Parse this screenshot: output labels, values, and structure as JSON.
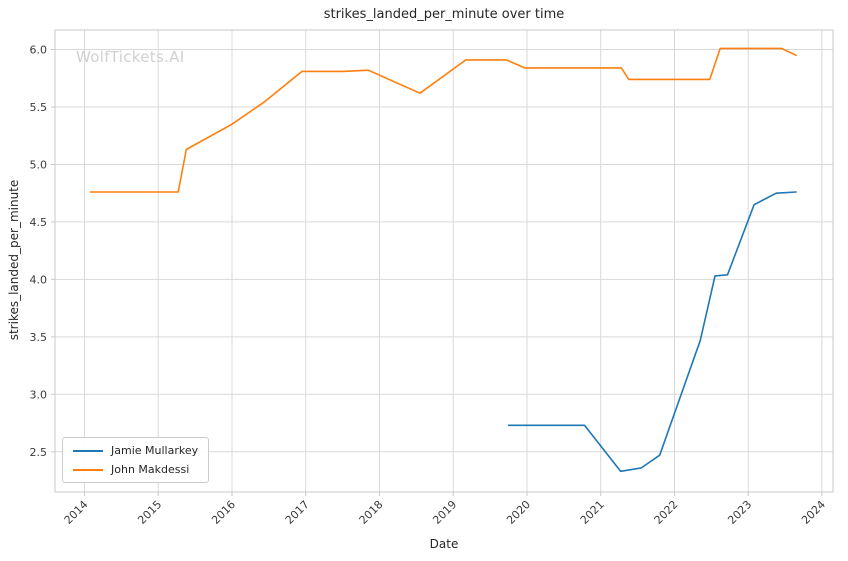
{
  "watermark": "WolfTickets.AI",
  "chart_data": {
    "type": "line",
    "title": "strikes_landed_per_minute over time",
    "xlabel": "Date",
    "ylabel": "strikes_landed_per_minute",
    "x_ticks": [
      2014,
      2015,
      2016,
      2017,
      2018,
      2019,
      2020,
      2021,
      2022,
      2023,
      2024
    ],
    "y_ticks": [
      2.5,
      3.0,
      3.5,
      4.0,
      4.5,
      5.0,
      5.5,
      6.0
    ],
    "xlim": [
      2013.6,
      2024.15
    ],
    "ylim": [
      2.15,
      6.17
    ],
    "grid": true,
    "legend_position": "lower left",
    "series": [
      {
        "name": "Jamie Mullarkey",
        "color": "#1f77b4",
        "x": [
          2019.75,
          2020.78,
          2021.27,
          2021.55,
          2021.8,
          2022.35,
          2022.55,
          2022.72,
          2023.08,
          2023.38,
          2023.65
        ],
        "y": [
          2.73,
          2.73,
          2.33,
          2.36,
          2.47,
          3.47,
          4.03,
          4.04,
          4.65,
          4.75,
          4.76
        ]
      },
      {
        "name": "John Makdessi",
        "color": "#ff7f0e",
        "x": [
          2014.08,
          2015.27,
          2015.38,
          2016.0,
          2016.45,
          2016.95,
          2017.5,
          2017.85,
          2018.55,
          2019.17,
          2019.72,
          2019.97,
          2021.28,
          2021.38,
          2022.48,
          2022.62,
          2023.45,
          2023.65
        ],
        "y": [
          4.76,
          4.76,
          5.13,
          5.35,
          5.55,
          5.81,
          5.81,
          5.82,
          5.62,
          5.91,
          5.91,
          5.84,
          5.84,
          5.74,
          5.74,
          6.01,
          6.01,
          5.95
        ]
      }
    ]
  }
}
